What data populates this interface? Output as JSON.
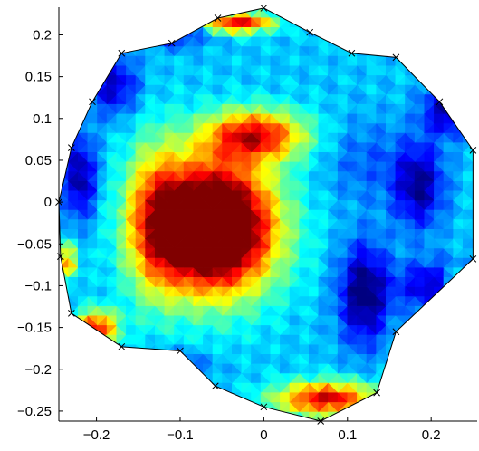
{
  "chart_data": {
    "type": "heatmap",
    "title": "",
    "xlabel": "",
    "ylabel": "",
    "xlim": [
      -0.245,
      0.255
    ],
    "ylim": [
      -0.262,
      0.233
    ],
    "xticks": [
      -0.2,
      -0.1,
      0,
      0.1,
      0.2
    ],
    "xtick_labels": [
      "−0.2",
      "−0.1",
      "0",
      "0.1",
      "0.2"
    ],
    "yticks": [
      0.2,
      0.15,
      0.1,
      0.05,
      0,
      -0.05,
      -0.1,
      -0.15,
      -0.2,
      -0.25
    ],
    "ytick_labels": [
      "0.2",
      "0.15",
      "0.1",
      "0.05",
      "0",
      "−0.05",
      "−0.1",
      "−0.15",
      "−0.2",
      "−0.25"
    ],
    "colormap": "jet",
    "grid": false,
    "legend": "none",
    "boundary_markers": [
      [
        0.0,
        0.232
      ],
      [
        -0.055,
        0.22
      ],
      [
        -0.11,
        0.19
      ],
      [
        -0.17,
        0.178
      ],
      [
        -0.205,
        0.12
      ],
      [
        -0.23,
        0.065
      ],
      [
        -0.245,
        0.0
      ],
      [
        -0.243,
        -0.065
      ],
      [
        -0.23,
        -0.133
      ],
      [
        -0.17,
        -0.173
      ],
      [
        -0.1,
        -0.178
      ],
      [
        -0.058,
        -0.22
      ],
      [
        0.0,
        -0.245
      ],
      [
        0.068,
        -0.262
      ],
      [
        0.135,
        -0.228
      ],
      [
        0.158,
        -0.155
      ],
      [
        0.25,
        -0.068
      ],
      [
        0.25,
        0.062
      ],
      [
        0.21,
        0.12
      ],
      [
        0.158,
        0.173
      ],
      [
        0.105,
        0.178
      ],
      [
        0.055,
        0.203
      ]
    ],
    "hotspots": [
      {
        "x": -0.06,
        "y": -0.03,
        "sx": 0.07,
        "sy": 0.075,
        "amp": 1.1,
        "note": "large central maximum"
      },
      {
        "x": -0.01,
        "y": 0.08,
        "sx": 0.06,
        "sy": 0.03,
        "amp": 0.55
      },
      {
        "x": -0.13,
        "y": -0.02,
        "sx": 0.035,
        "sy": 0.09,
        "amp": 0.35
      },
      {
        "x": -0.03,
        "y": 0.215,
        "sx": 0.04,
        "sy": 0.012,
        "amp": 0.6
      },
      {
        "x": 0.075,
        "y": -0.235,
        "sx": 0.06,
        "sy": 0.02,
        "amp": 0.6
      },
      {
        "x": -0.2,
        "y": -0.15,
        "sx": 0.025,
        "sy": 0.02,
        "amp": 0.55
      },
      {
        "x": -0.235,
        "y": -0.07,
        "sx": 0.012,
        "sy": 0.02,
        "amp": 0.4
      },
      {
        "x": -0.11,
        "y": 0.2,
        "sx": 0.04,
        "sy": 0.015,
        "amp": -0.2
      },
      {
        "x": -0.18,
        "y": 0.14,
        "sx": 0.03,
        "sy": 0.035,
        "amp": -0.25
      },
      {
        "x": -0.22,
        "y": 0.03,
        "sx": 0.02,
        "sy": 0.05,
        "amp": -0.3
      },
      {
        "x": 0.12,
        "y": -0.11,
        "sx": 0.03,
        "sy": 0.06,
        "amp": -0.35
      },
      {
        "x": 0.185,
        "y": 0.02,
        "sx": 0.03,
        "sy": 0.05,
        "amp": -0.3
      },
      {
        "x": 0.22,
        "y": 0.11,
        "sx": 0.03,
        "sy": 0.03,
        "amp": -0.28
      },
      {
        "x": 0.2,
        "y": -0.1,
        "sx": 0.04,
        "sy": 0.03,
        "amp": -0.25
      },
      {
        "x": -0.11,
        "y": -0.2,
        "sx": 0.04,
        "sy": 0.02,
        "amp": -0.2
      },
      {
        "x": 0.23,
        "y": -0.1,
        "sx": 0.015,
        "sy": 0.015,
        "amp": 0.35
      },
      {
        "x": 0.12,
        "y": 0.05,
        "sx": 0.05,
        "sy": 0.05,
        "amp": -0.1
      }
    ],
    "base_level": 0.32
  }
}
